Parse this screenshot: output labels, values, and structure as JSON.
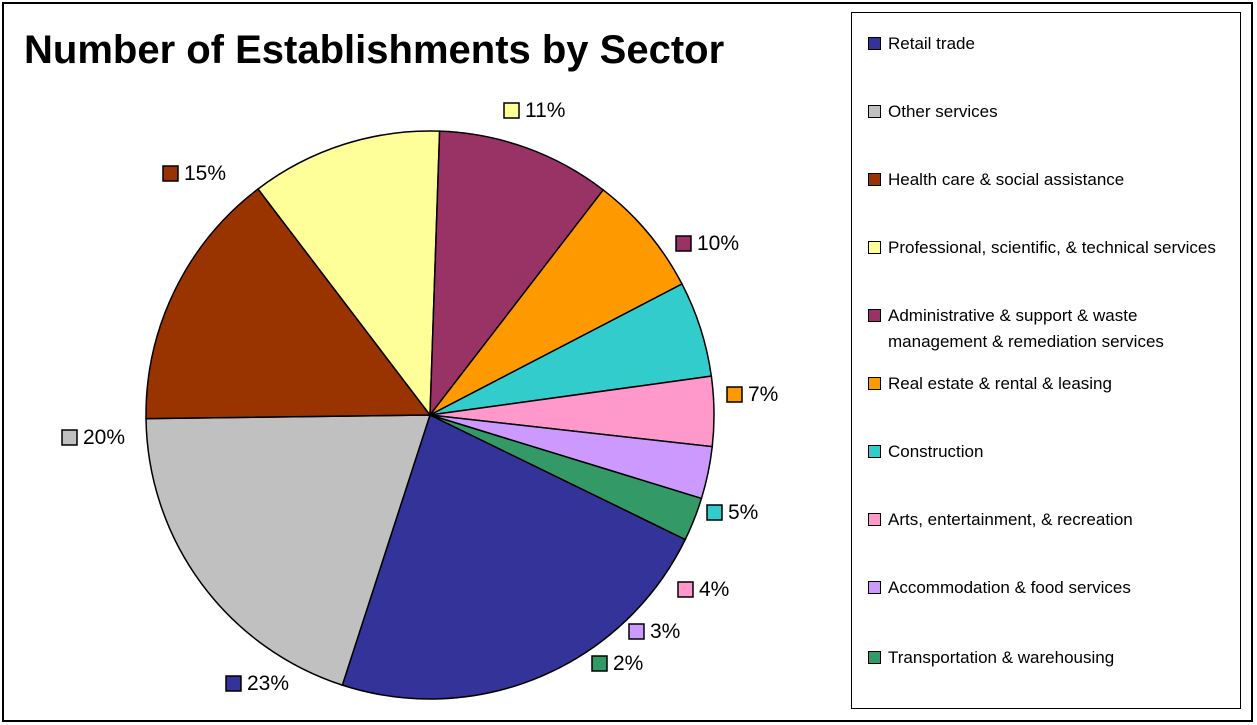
{
  "chart_data": {
    "type": "pie",
    "title": "Number of Establishments by Sector",
    "legend_position": "right",
    "slices": [
      {
        "label": "Retail trade",
        "value": 23,
        "display": "23%",
        "color": "#333399"
      },
      {
        "label": "Other services",
        "value": 20,
        "display": "20%",
        "color": "#c0c0c0"
      },
      {
        "label": "Health care & social assistance",
        "value": 15,
        "display": "15%",
        "color": "#993300"
      },
      {
        "label": "Professional, scientific, & technical services",
        "value": 11,
        "display": "11%",
        "color": "#ffff99"
      },
      {
        "label": "Administrative & support & waste management & remediation services",
        "value": 10,
        "display": "10%",
        "color": "#993366"
      },
      {
        "label": "Real estate & rental & leasing",
        "value": 7,
        "display": "7%",
        "color": "#ff9900"
      },
      {
        "label": "Construction",
        "value": 5.5,
        "display": "5%",
        "color": "#33cccc"
      },
      {
        "label": "Arts, entertainment, & recreation",
        "value": 4,
        "display": "4%",
        "color": "#ff99cc"
      },
      {
        "label": "Accommodation & food services",
        "value": 3,
        "display": "3%",
        "color": "#cc99ff"
      },
      {
        "label": "Transportation & warehousing",
        "value": 2.5,
        "display": "2%",
        "color": "#339966"
      }
    ]
  }
}
